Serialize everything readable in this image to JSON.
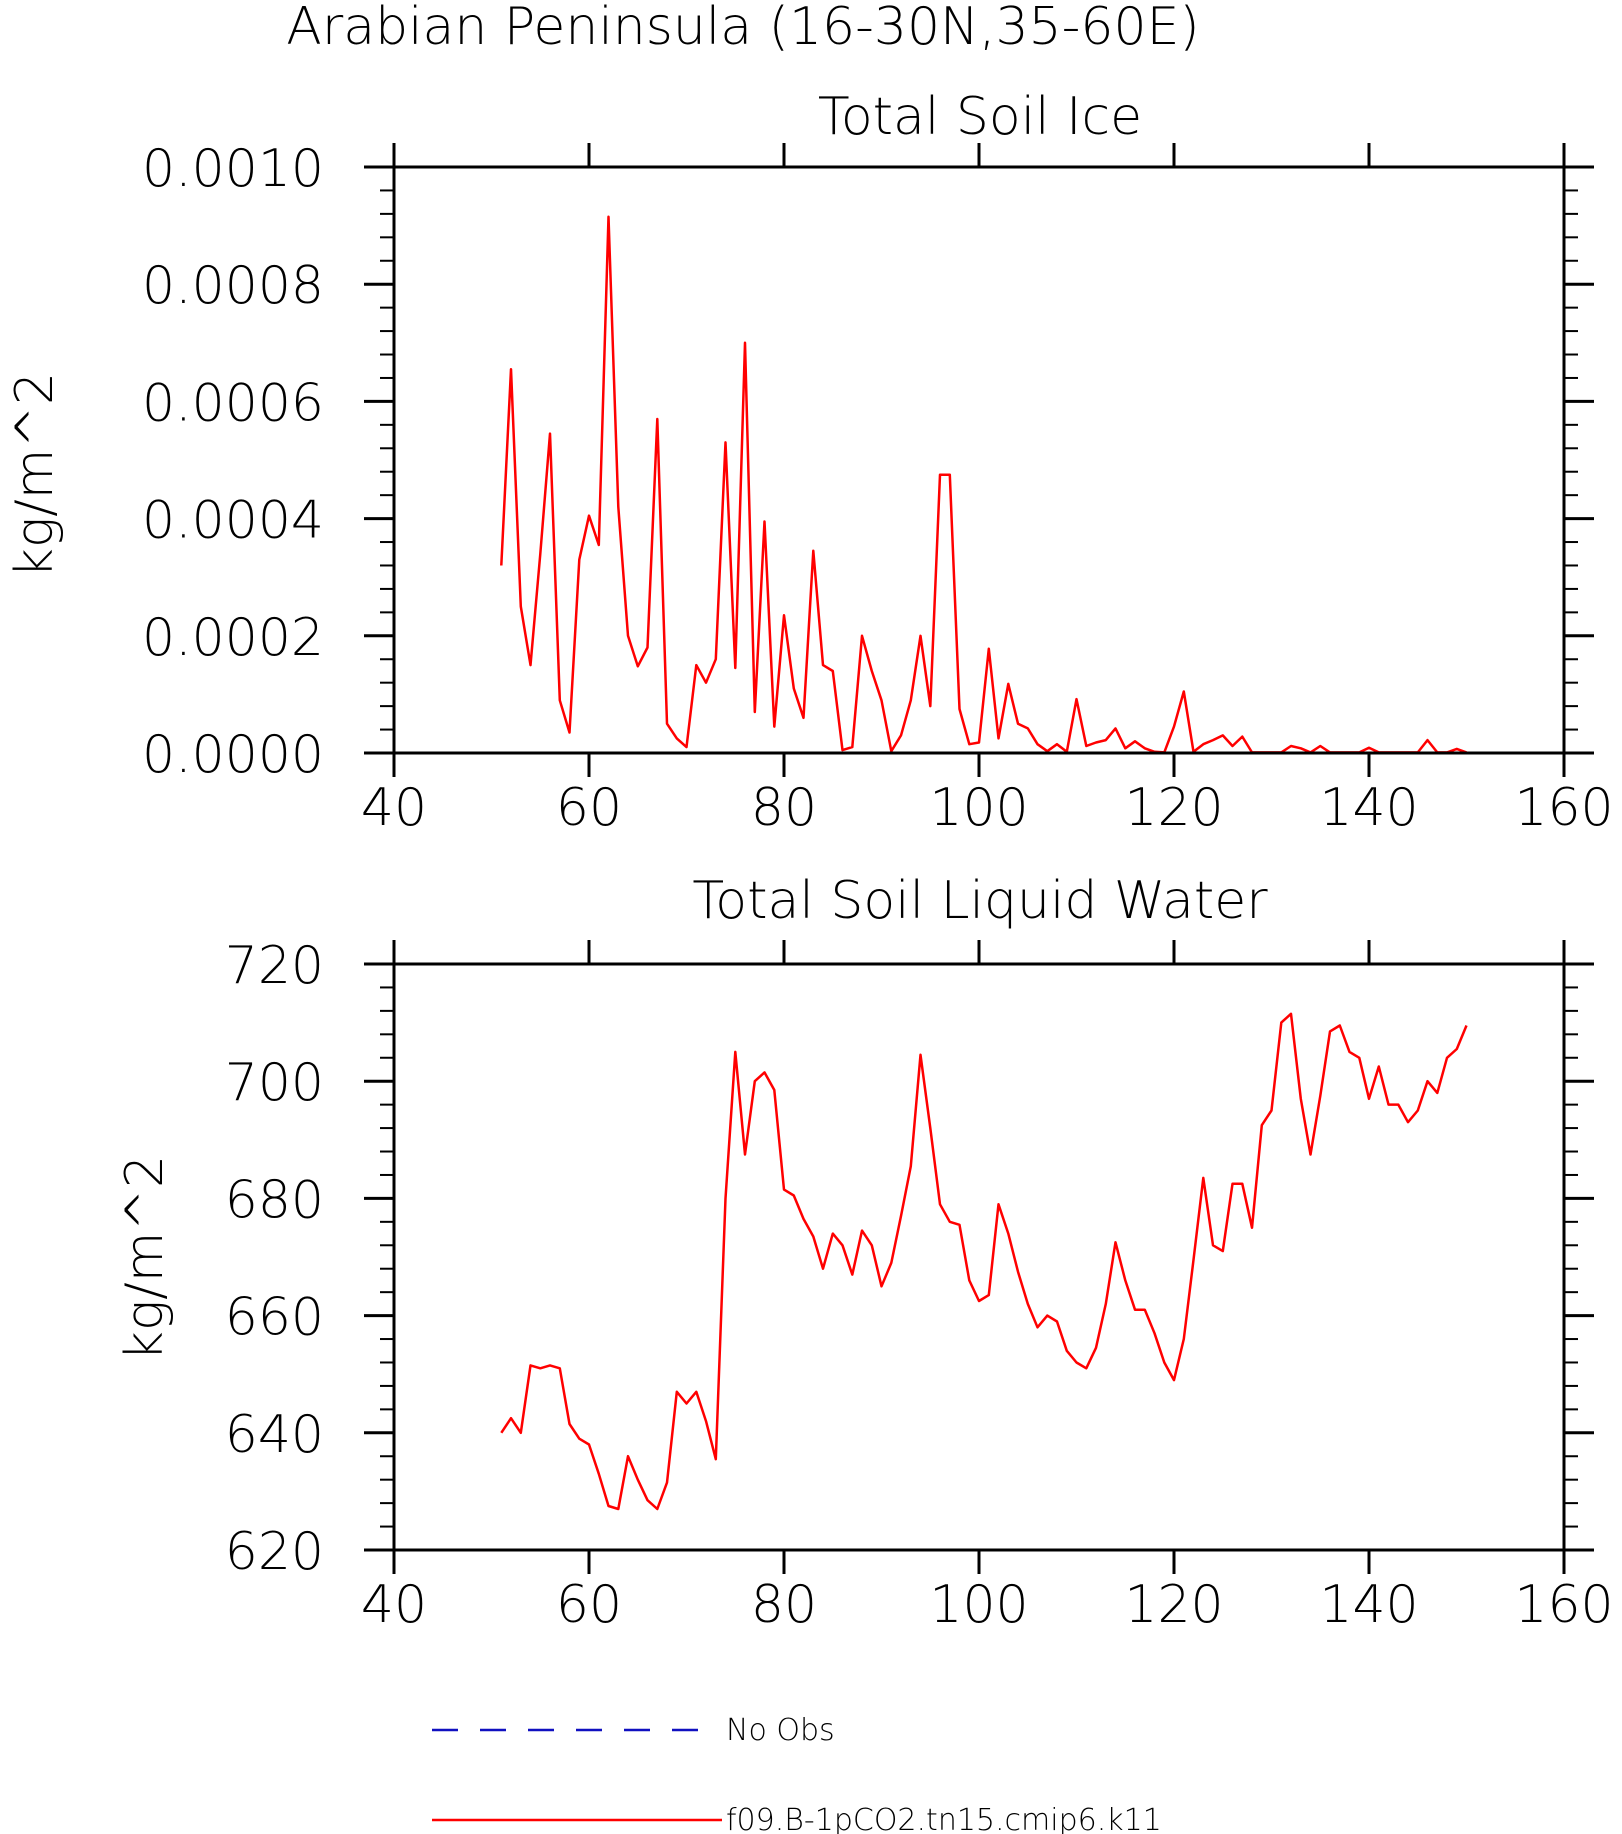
{
  "figure_title": "Arabian Peninsula (16-30N,35-60E)",
  "legend": {
    "items": [
      {
        "label": "No Obs",
        "color": "#1010c0",
        "style": "dashed"
      },
      {
        "label": "f09.B-1pCO2.tn15.cmip6.k11",
        "color": "#ff0000",
        "style": "solid"
      }
    ]
  },
  "chart_data": [
    {
      "type": "line",
      "title": "Total Soil Ice",
      "xlabel": "",
      "ylabel": "kg/m^2",
      "xlim": [
        40,
        160
      ],
      "ylim": [
        0,
        0.001
      ],
      "xticks": [
        40,
        60,
        80,
        100,
        120,
        140,
        160
      ],
      "xtick_labels": [
        "40",
        "60",
        "80",
        "100",
        "120",
        "140",
        "160"
      ],
      "yticks": [
        0,
        0.0002,
        0.0004,
        0.0006,
        0.0008,
        0.001
      ],
      "ytick_labels": [
        "0.0000",
        "0.0002",
        "0.0004",
        "0.0006",
        "0.0008",
        "0.0010"
      ],
      "grid": false,
      "series": [
        {
          "color": "#ff0000",
          "x": [
            51,
            52,
            53,
            54,
            55,
            56,
            57,
            58,
            59,
            60,
            61,
            62,
            63,
            64,
            65,
            66,
            67,
            68,
            69,
            70,
            71,
            72,
            73,
            74,
            75,
            76,
            77,
            78,
            79,
            80,
            81,
            82,
            83,
            84,
            85,
            86,
            87,
            88,
            89,
            90,
            91,
            92,
            93,
            94,
            95,
            96,
            97,
            98,
            99,
            100,
            101,
            102,
            103,
            104,
            105,
            106,
            107,
            108,
            109,
            110,
            111,
            112,
            113,
            114,
            115,
            116,
            117,
            118,
            119,
            120,
            121,
            122,
            123,
            124,
            125,
            126,
            127,
            128,
            129,
            130,
            131,
            132,
            133,
            134,
            135,
            136,
            137,
            138,
            139,
            140,
            141,
            142,
            143,
            144,
            145,
            146,
            147,
            148,
            149,
            150
          ],
          "y": [
            0.00032,
            0.000655,
            0.00025,
            0.00015,
            0.00034,
            0.000545,
            9e-05,
            3.5e-05,
            0.00033,
            0.000405,
            0.000355,
            0.000915,
            0.00042,
            0.0002,
            0.000148,
            0.00018,
            0.00057,
            5e-05,
            2.5e-05,
            1e-05,
            0.00015,
            0.00012,
            0.00016,
            0.00053,
            0.000145,
            0.0007,
            7e-05,
            0.000395,
            4.5e-05,
            0.000235,
            0.00011,
            6e-05,
            0.000345,
            0.00015,
            0.00014,
            5e-06,
            1e-05,
            0.0002,
            0.00014,
            9e-05,
            3e-06,
            3e-05,
            9e-05,
            0.0002,
            8e-05,
            0.000475,
            0.000475,
            7.5e-05,
            1.5e-05,
            1.8e-05,
            0.000178,
            2.5e-05,
            0.000118,
            5e-05,
            4.2e-05,
            1.5e-05,
            3e-06,
            1.5e-05,
            2e-06,
            9.2e-05,
            1.2e-05,
            1.8e-05,
            2.2e-05,
            4.2e-05,
            8e-06,
            2e-05,
            8e-06,
            2e-06,
            1e-06,
            4.5e-05,
            0.000105,
            2e-06,
            1.5e-05,
            2.2e-05,
            3e-05,
            1.2e-05,
            2.8e-05,
            1e-06,
            1e-06,
            1e-06,
            1e-06,
            1.2e-05,
            8e-06,
            1e-06,
            1.2e-05,
            1e-06,
            1e-06,
            1e-06,
            1e-06,
            9e-06,
            1e-06,
            1e-06,
            1e-06,
            1e-06,
            1e-06,
            2.2e-05,
            1e-06,
            1e-06,
            7e-06,
            1e-06
          ]
        }
      ]
    },
    {
      "type": "line",
      "title": "Total Soil Liquid Water",
      "xlabel": "",
      "ylabel": "kg/m^2",
      "xlim": [
        40,
        160
      ],
      "ylim": [
        620,
        720
      ],
      "xticks": [
        40,
        60,
        80,
        100,
        120,
        140,
        160
      ],
      "xtick_labels": [
        "40",
        "60",
        "80",
        "100",
        "120",
        "140",
        "160"
      ],
      "yticks": [
        620,
        640,
        660,
        680,
        700,
        720
      ],
      "ytick_labels": [
        "620",
        "640",
        "660",
        "680",
        "700",
        "720"
      ],
      "grid": false,
      "series": [
        {
          "color": "#ff0000",
          "x": [
            51,
            52,
            53,
            54,
            55,
            56,
            57,
            58,
            59,
            60,
            61,
            62,
            63,
            64,
            65,
            66,
            67,
            68,
            69,
            70,
            71,
            72,
            73,
            74,
            75,
            76,
            77,
            78,
            79,
            80,
            81,
            82,
            83,
            84,
            85,
            86,
            87,
            88,
            89,
            90,
            91,
            92,
            93,
            94,
            95,
            96,
            97,
            98,
            99,
            100,
            101,
            102,
            103,
            104,
            105,
            106,
            107,
            108,
            109,
            110,
            111,
            112,
            113,
            114,
            115,
            116,
            117,
            118,
            119,
            120,
            121,
            122,
            123,
            124,
            125,
            126,
            127,
            128,
            129,
            130,
            131,
            132,
            133,
            134,
            135,
            136,
            137,
            138,
            139,
            140,
            141,
            142,
            143,
            144,
            145,
            146,
            147,
            148,
            149,
            150
          ],
          "y": [
            640,
            642.5,
            640,
            651.5,
            651,
            651.5,
            651,
            641.5,
            639,
            638,
            633,
            627.5,
            627,
            636,
            632,
            628.5,
            627,
            631.5,
            647,
            645,
            647,
            642,
            635.5,
            680,
            705,
            687.5,
            700,
            701.5,
            698.5,
            681.5,
            680.5,
            676.5,
            673.5,
            668,
            674,
            672,
            667,
            674.5,
            672,
            665,
            669,
            677,
            685.5,
            704.5,
            692,
            679,
            676,
            675.5,
            666,
            662.5,
            663.5,
            679,
            674,
            667.5,
            662,
            658,
            660,
            659,
            654,
            652,
            651,
            654.5,
            662,
            672.5,
            666,
            661,
            661,
            657,
            652,
            649,
            656,
            669.5,
            683.5,
            672,
            671,
            682.5,
            682.5,
            675,
            692.5,
            695,
            710,
            711.5,
            697,
            687.5,
            697.5,
            708.5,
            709.5,
            705,
            704,
            697,
            702.5,
            696,
            696,
            693,
            695,
            700,
            698,
            704,
            705.5,
            709.5
          ]
        }
      ]
    }
  ]
}
